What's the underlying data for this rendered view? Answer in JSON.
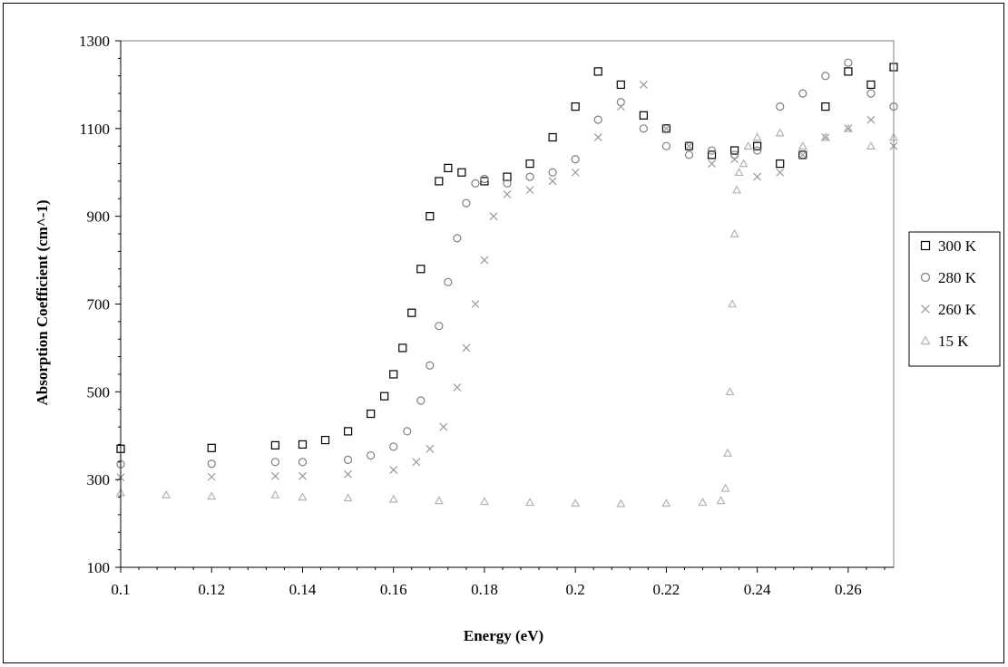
{
  "chart_data": {
    "type": "scatter",
    "xlabel": "Energy (eV)",
    "ylabel": "Absorption Coefficient (cm^-1)",
    "xlim": [
      0.1,
      0.27
    ],
    "ylim": [
      100,
      1300
    ],
    "xticks": [
      0.1,
      0.12,
      0.14,
      0.16,
      0.18,
      0.2,
      0.22,
      0.24,
      0.26
    ],
    "xtick_labels": [
      "0.1",
      "0.12",
      "0.14",
      "0.16",
      "0.18",
      "0.2",
      "0.22",
      "0.24",
      "0.26"
    ],
    "yticks": [
      100,
      300,
      500,
      700,
      900,
      1100,
      1300
    ],
    "ytick_labels": [
      "100",
      "300",
      "500",
      "700",
      "900",
      "1100",
      "1300"
    ],
    "grid": false,
    "legend_position": "right",
    "series": [
      {
        "name": "300 K",
        "marker": "square",
        "color": "#000000",
        "points": [
          [
            0.1,
            370
          ],
          [
            0.12,
            372
          ],
          [
            0.134,
            378
          ],
          [
            0.14,
            380
          ],
          [
            0.145,
            390
          ],
          [
            0.15,
            410
          ],
          [
            0.155,
            450
          ],
          [
            0.158,
            490
          ],
          [
            0.16,
            540
          ],
          [
            0.162,
            600
          ],
          [
            0.164,
            680
          ],
          [
            0.166,
            780
          ],
          [
            0.168,
            900
          ],
          [
            0.17,
            980
          ],
          [
            0.172,
            1010
          ],
          [
            0.175,
            1000
          ],
          [
            0.18,
            980
          ],
          [
            0.185,
            990
          ],
          [
            0.19,
            1020
          ],
          [
            0.195,
            1080
          ],
          [
            0.2,
            1150
          ],
          [
            0.205,
            1230
          ],
          [
            0.21,
            1200
          ],
          [
            0.215,
            1130
          ],
          [
            0.22,
            1100
          ],
          [
            0.225,
            1060
          ],
          [
            0.23,
            1040
          ],
          [
            0.235,
            1050
          ],
          [
            0.24,
            1060
          ],
          [
            0.245,
            1020
          ],
          [
            0.25,
            1040
          ],
          [
            0.255,
            1150
          ],
          [
            0.26,
            1230
          ],
          [
            0.265,
            1200
          ],
          [
            0.27,
            1240
          ]
        ]
      },
      {
        "name": "280 K",
        "marker": "circle",
        "color": "#7f7f7f",
        "points": [
          [
            0.1,
            335
          ],
          [
            0.12,
            336
          ],
          [
            0.134,
            340
          ],
          [
            0.14,
            340
          ],
          [
            0.15,
            345
          ],
          [
            0.155,
            355
          ],
          [
            0.16,
            375
          ],
          [
            0.163,
            410
          ],
          [
            0.166,
            480
          ],
          [
            0.168,
            560
          ],
          [
            0.17,
            650
          ],
          [
            0.172,
            750
          ],
          [
            0.174,
            850
          ],
          [
            0.176,
            930
          ],
          [
            0.178,
            975
          ],
          [
            0.18,
            985
          ],
          [
            0.185,
            975
          ],
          [
            0.19,
            990
          ],
          [
            0.195,
            1000
          ],
          [
            0.2,
            1030
          ],
          [
            0.205,
            1120
          ],
          [
            0.21,
            1160
          ],
          [
            0.215,
            1100
          ],
          [
            0.22,
            1060
          ],
          [
            0.225,
            1040
          ],
          [
            0.23,
            1050
          ],
          [
            0.235,
            1040
          ],
          [
            0.24,
            1050
          ],
          [
            0.245,
            1150
          ],
          [
            0.25,
            1180
          ],
          [
            0.255,
            1220
          ],
          [
            0.26,
            1250
          ],
          [
            0.265,
            1180
          ],
          [
            0.27,
            1150
          ]
        ]
      },
      {
        "name": "260 K",
        "marker": "x",
        "color": "#999999",
        "points": [
          [
            0.1,
            305
          ],
          [
            0.12,
            306
          ],
          [
            0.134,
            308
          ],
          [
            0.14,
            308
          ],
          [
            0.15,
            312
          ],
          [
            0.16,
            322
          ],
          [
            0.165,
            340
          ],
          [
            0.168,
            370
          ],
          [
            0.171,
            420
          ],
          [
            0.174,
            510
          ],
          [
            0.176,
            600
          ],
          [
            0.178,
            700
          ],
          [
            0.18,
            800
          ],
          [
            0.182,
            900
          ],
          [
            0.185,
            950
          ],
          [
            0.19,
            960
          ],
          [
            0.195,
            980
          ],
          [
            0.2,
            1000
          ],
          [
            0.205,
            1080
          ],
          [
            0.21,
            1150
          ],
          [
            0.215,
            1200
          ],
          [
            0.22,
            1100
          ],
          [
            0.225,
            1060
          ],
          [
            0.23,
            1020
          ],
          [
            0.235,
            1030
          ],
          [
            0.24,
            990
          ],
          [
            0.245,
            1000
          ],
          [
            0.25,
            1040
          ],
          [
            0.255,
            1080
          ],
          [
            0.26,
            1100
          ],
          [
            0.265,
            1120
          ],
          [
            0.27,
            1060
          ]
        ]
      },
      {
        "name": "15 K",
        "marker": "triangle",
        "color": "#b3b3b3",
        "points": [
          [
            0.1,
            270
          ],
          [
            0.11,
            265
          ],
          [
            0.12,
            262
          ],
          [
            0.134,
            265
          ],
          [
            0.14,
            260
          ],
          [
            0.15,
            258
          ],
          [
            0.16,
            255
          ],
          [
            0.17,
            252
          ],
          [
            0.18,
            250
          ],
          [
            0.19,
            248
          ],
          [
            0.2,
            246
          ],
          [
            0.21,
            245
          ],
          [
            0.22,
            246
          ],
          [
            0.228,
            248
          ],
          [
            0.232,
            252
          ],
          [
            0.233,
            280
          ],
          [
            0.2335,
            360
          ],
          [
            0.234,
            500
          ],
          [
            0.2345,
            700
          ],
          [
            0.235,
            860
          ],
          [
            0.2355,
            960
          ],
          [
            0.236,
            1000
          ],
          [
            0.237,
            1020
          ],
          [
            0.238,
            1060
          ],
          [
            0.24,
            1080
          ],
          [
            0.245,
            1090
          ],
          [
            0.25,
            1060
          ],
          [
            0.255,
            1080
          ],
          [
            0.26,
            1100
          ],
          [
            0.265,
            1060
          ],
          [
            0.27,
            1080
          ]
        ]
      }
    ]
  }
}
